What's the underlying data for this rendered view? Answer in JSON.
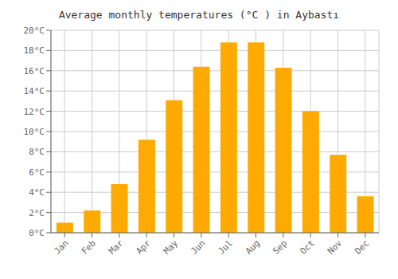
{
  "chart_data": {
    "type": "bar",
    "title": "Average monthly temperatures (°C ) in Aybastı",
    "categories": [
      "Jan",
      "Feb",
      "Mar",
      "Apr",
      "May",
      "Jun",
      "Jul",
      "Aug",
      "Sep",
      "Oct",
      "Nov",
      "Dec"
    ],
    "values": [
      1.0,
      2.2,
      4.8,
      9.2,
      13.1,
      16.4,
      18.8,
      18.8,
      16.3,
      12.0,
      7.7,
      3.6
    ],
    "color": "#FFAA00",
    "ylim": [
      0,
      20
    ],
    "yticks": [
      {
        "value": 0,
        "label": "0°C"
      },
      {
        "value": 2,
        "label": "2°C"
      },
      {
        "value": 4,
        "label": "4°C"
      },
      {
        "value": 6,
        "label": "6°C"
      },
      {
        "value": 8,
        "label": "8°C"
      },
      {
        "value": 10,
        "label": "10°C"
      },
      {
        "value": 12,
        "label": "12°C"
      },
      {
        "value": 14,
        "label": "14°C"
      },
      {
        "value": 16,
        "label": "16°C"
      },
      {
        "value": 18,
        "label": "18°C"
      },
      {
        "value": 20,
        "label": "20°C"
      }
    ],
    "grid": true
  }
}
